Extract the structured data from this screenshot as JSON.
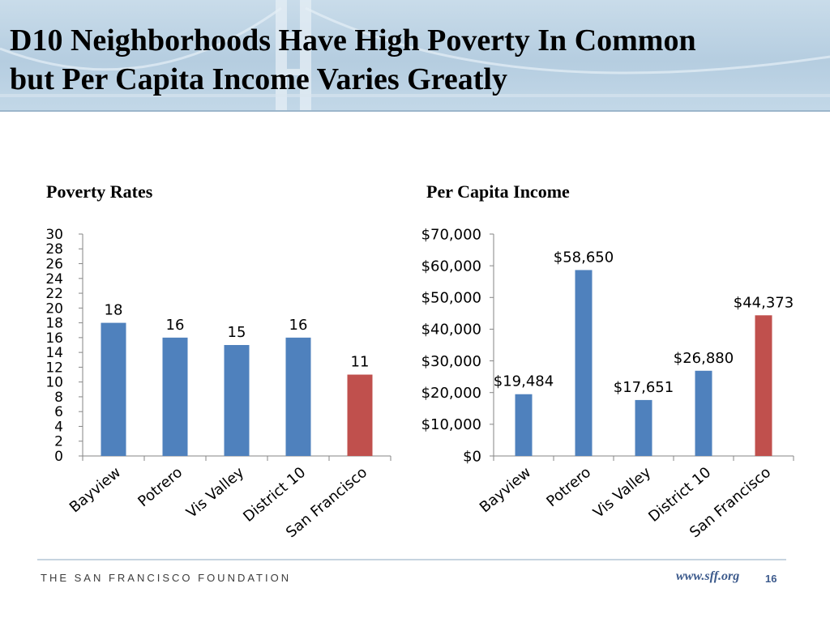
{
  "slide": {
    "title_line1": "D10 Neighborhoods Have High Poverty In Common",
    "title_line2": "but Per Capita Income Varies Greatly"
  },
  "footer": {
    "organization": "THE SAN FRANCISCO FOUNDATION",
    "url": "www.sff.org",
    "page_number": "16"
  },
  "colors": {
    "primary_bar": "#4f81bd",
    "highlight_bar": "#c0504d"
  },
  "chart_data": [
    {
      "type": "bar",
      "title": "Poverty Rates",
      "categories": [
        "Bayview",
        "Potrero",
        "Vis Valley",
        "District 10",
        "San Francisco"
      ],
      "values": [
        18,
        16,
        15,
        16,
        11
      ],
      "data_labels": [
        "18",
        "16",
        "15",
        "16",
        "11"
      ],
      "ylim": [
        0,
        30
      ],
      "y_ticks": [
        0,
        2,
        4,
        6,
        8,
        10,
        12,
        14,
        16,
        18,
        20,
        22,
        24,
        26,
        28,
        30
      ],
      "y_tick_labels": [
        "0",
        "2",
        "4",
        "6",
        "8",
        "10",
        "12",
        "14",
        "16",
        "18",
        "20",
        "22",
        "24",
        "26",
        "28",
        "30"
      ],
      "bar_colors": [
        "#4f81bd",
        "#4f81bd",
        "#4f81bd",
        "#4f81bd",
        "#c0504d"
      ],
      "grid": false,
      "legend": "none"
    },
    {
      "type": "bar",
      "title": "Per Capita Income",
      "categories": [
        "Bayview",
        "Potrero",
        "Vis Valley",
        "District 10",
        "San Francisco"
      ],
      "values": [
        19484,
        58650,
        17651,
        26880,
        44373
      ],
      "data_labels": [
        "$19,484",
        "$58,650",
        "$17,651",
        "$26,880",
        "$44,373"
      ],
      "ylim": [
        0,
        70000
      ],
      "y_ticks": [
        0,
        10000,
        20000,
        30000,
        40000,
        50000,
        60000,
        70000
      ],
      "y_tick_labels": [
        "$0",
        "$10,000",
        "$20,000",
        "$30,000",
        "$40,000",
        "$50,000",
        "$60,000",
        "$70,000"
      ],
      "bar_colors": [
        "#4f81bd",
        "#4f81bd",
        "#4f81bd",
        "#4f81bd",
        "#c0504d"
      ],
      "grid": false,
      "legend": "none"
    }
  ]
}
